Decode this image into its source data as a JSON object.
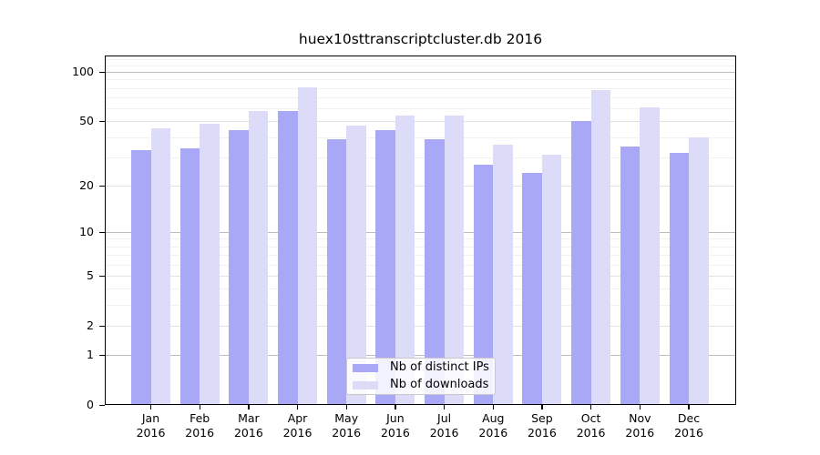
{
  "title": "huex10sttranscriptcluster.db 2016",
  "chart_data": {
    "type": "bar",
    "title": "huex10sttranscriptcluster.db 2016",
    "y_scale": "log10(1+y)",
    "grid": true,
    "categories": [
      "Jan",
      "Feb",
      "Mar",
      "Apr",
      "May",
      "Jun",
      "Jul",
      "Aug",
      "Sep",
      "Oct",
      "Nov",
      "Dec"
    ],
    "x_tick_year": "2016",
    "series": [
      {
        "name": "Nb of distinct IPs",
        "color": "#a8a8f6",
        "values": [
          33,
          34,
          44,
          58,
          39,
          44,
          39,
          27,
          24,
          50,
          35,
          32
        ]
      },
      {
        "name": "Nb of downloads",
        "color": "#dcdcf8",
        "values": [
          45,
          48,
          58,
          81,
          47,
          54,
          54,
          36,
          31,
          78,
          61,
          40
        ]
      }
    ],
    "y_ticks": [
      0,
      1,
      2,
      5,
      10,
      20,
      50,
      100
    ],
    "y_minor_gridlines": [
      3,
      4,
      6,
      7,
      8,
      9,
      30,
      40,
      60,
      70,
      80,
      90,
      110,
      120
    ],
    "ylim": [
      0,
      126
    ],
    "legend_position": "lower center"
  },
  "colors": {
    "axis": "#000000",
    "grid_major": "#bdbdbd",
    "grid_minor": "#f1f1f1",
    "background": "#ffffff"
  }
}
